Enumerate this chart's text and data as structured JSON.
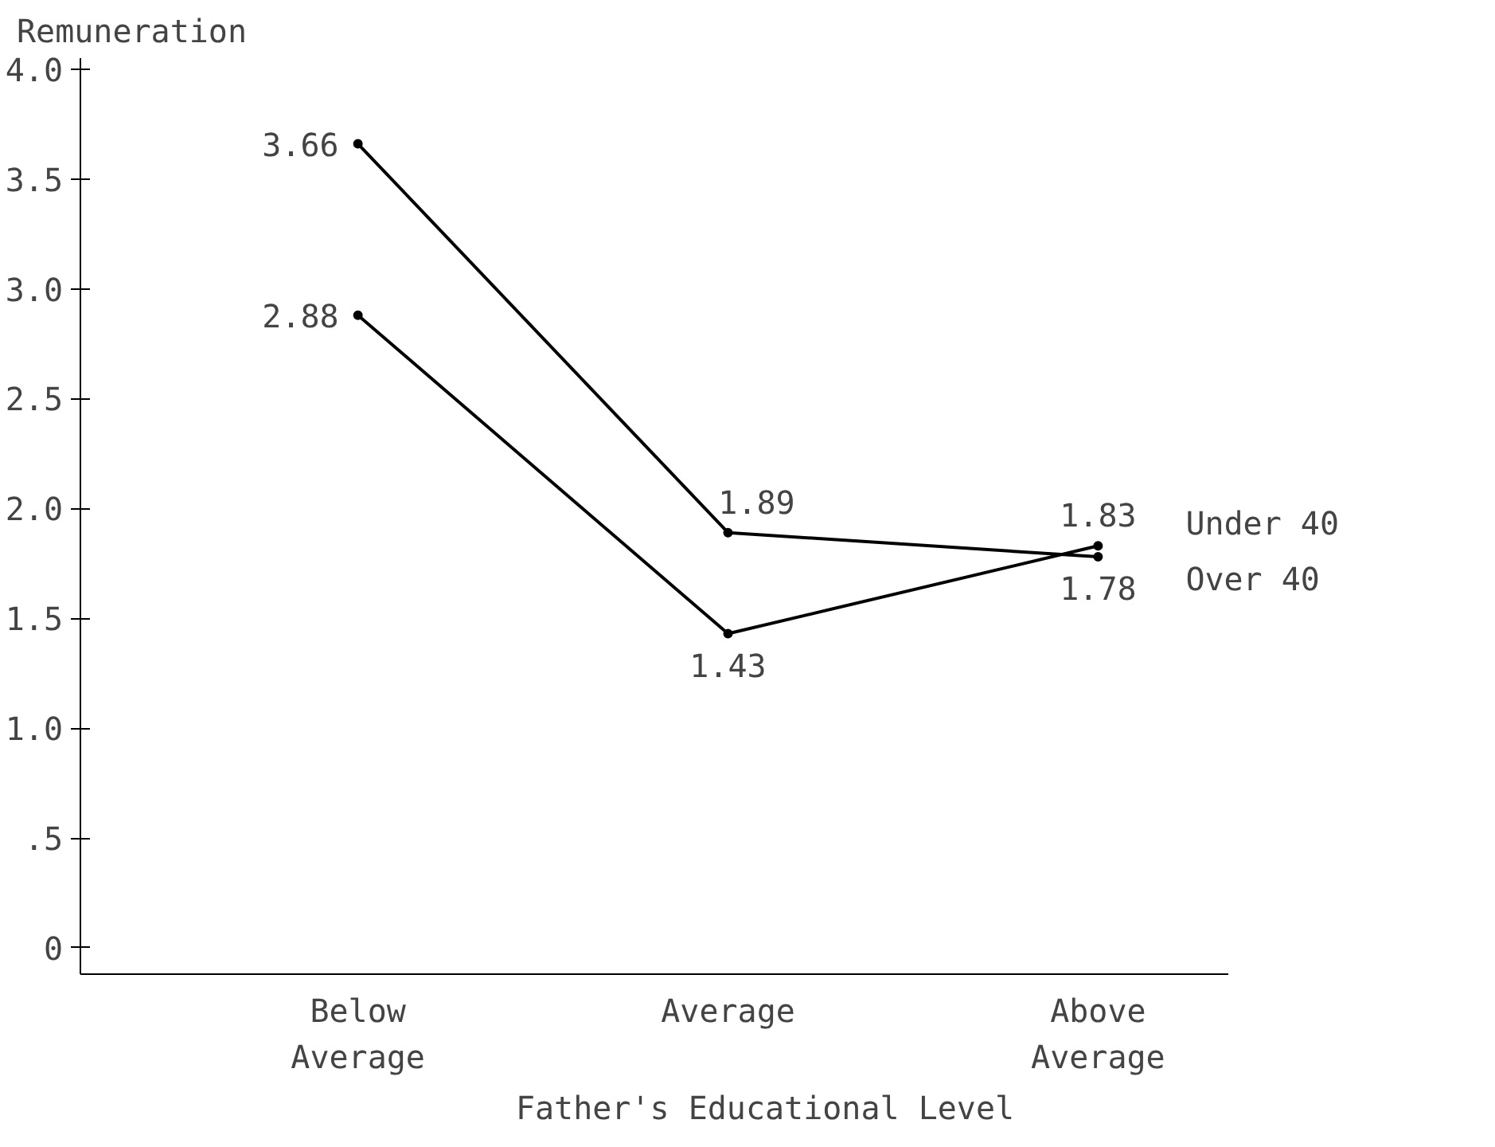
{
  "chart_data": {
    "type": "line",
    "ylabel": "Remuneration",
    "xlabel": "Father's Educational Level",
    "categories": [
      "Below Average",
      "Average",
      "Above Average"
    ],
    "series": [
      {
        "name": "Under 40",
        "color": "#000000",
        "values": [
          2.88,
          1.43,
          1.83
        ]
      },
      {
        "name": "Over 40",
        "color": "#000000",
        "values": [
          3.66,
          1.89,
          1.78
        ]
      }
    ],
    "ylim": [
      -0.12,
      4.05
    ],
    "yticks": [
      0,
      {
        "value": 0.5,
        "label": ".5"
      },
      {
        "value": 1,
        "label": "1.0"
      },
      1.5,
      {
        "value": 2,
        "label": "2.0"
      },
      2.5,
      {
        "value": 3,
        "label": "3.0"
      },
      3.5,
      {
        "value": 4,
        "label": "4.0"
      }
    ],
    "data_labels": true,
    "grid": false,
    "marker": "circle",
    "line_style": "solid"
  }
}
